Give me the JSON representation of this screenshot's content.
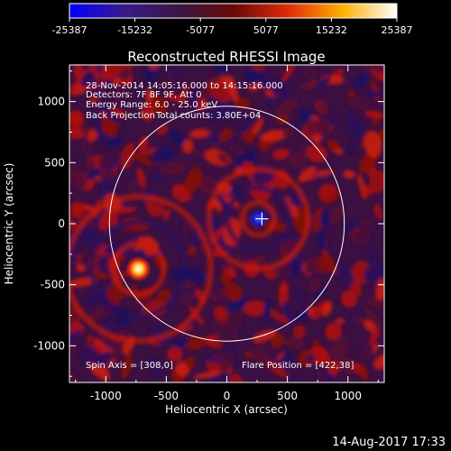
{
  "colorbar": {
    "ticks": [
      -25387,
      -15232,
      -5077,
      5077,
      15232,
      25387
    ],
    "tick_labels": [
      "-25387",
      "-15232",
      "-5077",
      "5077",
      "15232",
      "25387"
    ],
    "range": [
      -25387,
      25387
    ],
    "colors": [
      "#0000ff",
      "#3a1a8c",
      "#3b1645",
      "#6a0808",
      "#e02a0a",
      "#ffb000",
      "#ffffff"
    ]
  },
  "chart_data": {
    "type": "heatmap",
    "title": "Reconstructed RHESSI Image",
    "xlabel": "Heliocentric X (arcsec)",
    "ylabel": "Heliocentric Y (arcsec)",
    "xlim": [
      -1300,
      1300
    ],
    "ylim": [
      -1300,
      1300
    ],
    "x_ticks": [
      -1000,
      -500,
      0,
      500,
      1000
    ],
    "x_tick_labels": [
      "-1000",
      "-500",
      "0",
      "500",
      "1000"
    ],
    "y_ticks": [
      -1000,
      -500,
      0,
      500,
      1000
    ],
    "y_tick_labels": [
      "-1000",
      "-500",
      "0",
      "500",
      "1000"
    ],
    "solar_limb_radius": 970,
    "flare_marker": [
      290,
      40
    ],
    "sources": [
      {
        "x": -730,
        "y": -370,
        "value": 25387
      },
      {
        "x": 260,
        "y": 40,
        "value": -25387
      }
    ],
    "annotations": {
      "time": "28-Nov-2014 14:05:16.000 to 14:15:16.000",
      "detectors": "Detectors: 7F 8F 9F, Att 0",
      "energy": "Energy Range: 6.0 - 25.0 keV",
      "method": "Back Projection",
      "counts": "Total counts: 3.80E+04",
      "spin_axis": "Spin Axis = [308,0]",
      "flare_position": "Flare Position = [422,38]"
    }
  },
  "footer": {
    "timestamp": "14-Aug-2017 17:33"
  }
}
